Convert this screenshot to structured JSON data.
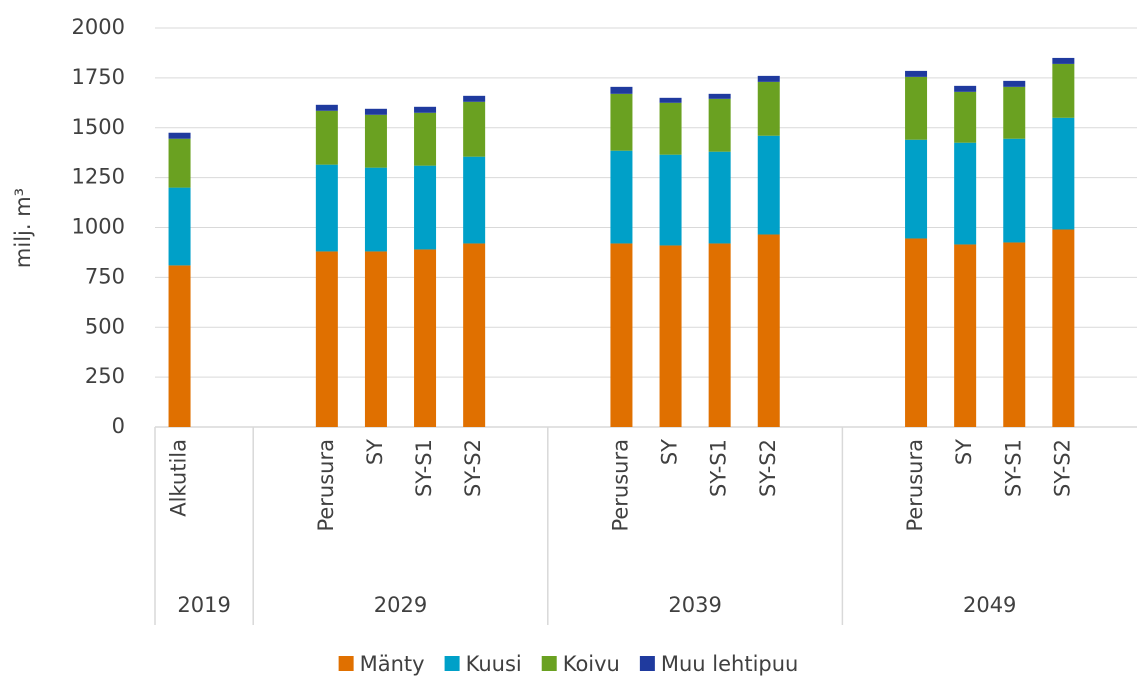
{
  "chart_data": {
    "type": "stacked_bar",
    "y_label": "milj. m³",
    "categories": [
      "Alkutila",
      null,
      null,
      "Perusura",
      "SY",
      "SY-S1",
      "SY-S2",
      null,
      null,
      "Perusura",
      "SY",
      "SY-S1",
      "SY-S2",
      null,
      null,
      "Perusura",
      "SY",
      "SY-S1",
      "SY-S2"
    ],
    "groups": [
      {
        "name": "2019",
        "size": 2
      },
      {
        "name": "2029",
        "size": 6
      },
      {
        "name": "2039",
        "size": 6
      },
      {
        "name": "2049",
        "size": 5
      }
    ],
    "series": [
      {
        "name": "Mänty",
        "color": "#e07000",
        "values": [
          810,
          null,
          null,
          880,
          880,
          890,
          920,
          null,
          null,
          920,
          910,
          920,
          965,
          null,
          null,
          945,
          915,
          925,
          990
        ]
      },
      {
        "name": "Kuusi",
        "color": "#00a0c8",
        "values": [
          390,
          null,
          null,
          435,
          420,
          420,
          435,
          null,
          null,
          465,
          455,
          460,
          495,
          null,
          null,
          495,
          510,
          520,
          560
        ]
      },
      {
        "name": "Koivu",
        "color": "#6aa121",
        "values": [
          245,
          null,
          null,
          270,
          265,
          265,
          275,
          null,
          null,
          285,
          260,
          265,
          270,
          null,
          null,
          315,
          255,
          260,
          270
        ]
      },
      {
        "name": "Muu lehtipuu",
        "color": "#1f3a9e",
        "values": [
          30,
          null,
          null,
          30,
          30,
          30,
          30,
          null,
          null,
          35,
          25,
          25,
          30,
          null,
          null,
          30,
          30,
          30,
          30
        ]
      }
    ],
    "ylim": [
      0,
      2000
    ],
    "yticks": [
      0,
      250,
      500,
      750,
      1000,
      1250,
      1500,
      1750,
      2000
    ],
    "grid": true,
    "legend": "bottom"
  }
}
